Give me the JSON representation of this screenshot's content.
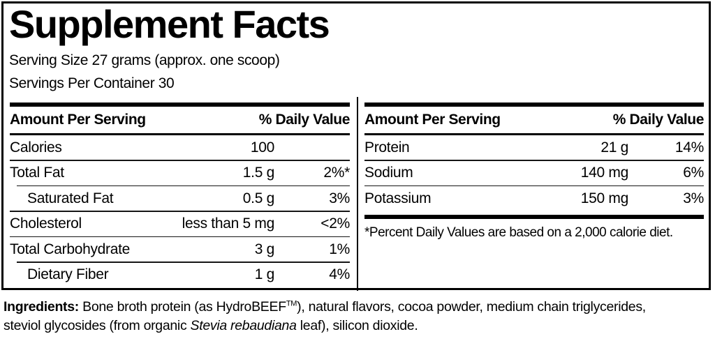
{
  "title": "Supplement Facts",
  "serving_info": {
    "serving_size": "Serving Size 27 grams (approx. one scoop)",
    "servings_per_container": "Servings Per Container 30"
  },
  "left_table": {
    "header": {
      "amount": "Amount Per Serving",
      "daily_value": "% Daily Value"
    },
    "rows": [
      {
        "label": "Calories",
        "amount": "100",
        "daily_value": ""
      },
      {
        "label": "Total Fat",
        "amount": "1.5 g",
        "daily_value": "2%*"
      },
      {
        "label": "Saturated Fat",
        "amount": "0.5 g",
        "daily_value": "3%",
        "indent": true
      },
      {
        "label": "Cholesterol",
        "amount": "less than 5 mg",
        "daily_value": "<2%"
      },
      {
        "label": "Total Carbohydrate",
        "amount": "3 g",
        "daily_value": "1%"
      },
      {
        "label": "Dietary Fiber",
        "amount": "1 g",
        "daily_value": "4%",
        "indent": true
      }
    ]
  },
  "right_table": {
    "header": {
      "amount": "Amount Per Serving",
      "daily_value": "% Daily Value"
    },
    "rows": [
      {
        "label": "Protein",
        "amount": "21 g",
        "daily_value": "14%"
      },
      {
        "label": "Sodium",
        "amount": "140 mg",
        "daily_value": "6%"
      },
      {
        "label": "Potassium",
        "amount": "150 mg",
        "daily_value": "3%"
      }
    ],
    "footnote": "*Percent Daily Values are based on a 2,000 calorie diet."
  },
  "ingredients": {
    "label": "Ingredients:",
    "line1_text": " Bone broth protein (as HydroBEEF",
    "trademark": "TM",
    "line1_rest": "), natural flavors, cocoa powder, medium chain triglycerides,",
    "line2_text": "steviol glycosides (from organic ",
    "line2_italic": "Stevia rebaudiana",
    "line2_rest": " leaf), silicon dioxide."
  },
  "colors": {
    "text": "#000000",
    "background": "#ffffff",
    "rule": "#000000"
  }
}
